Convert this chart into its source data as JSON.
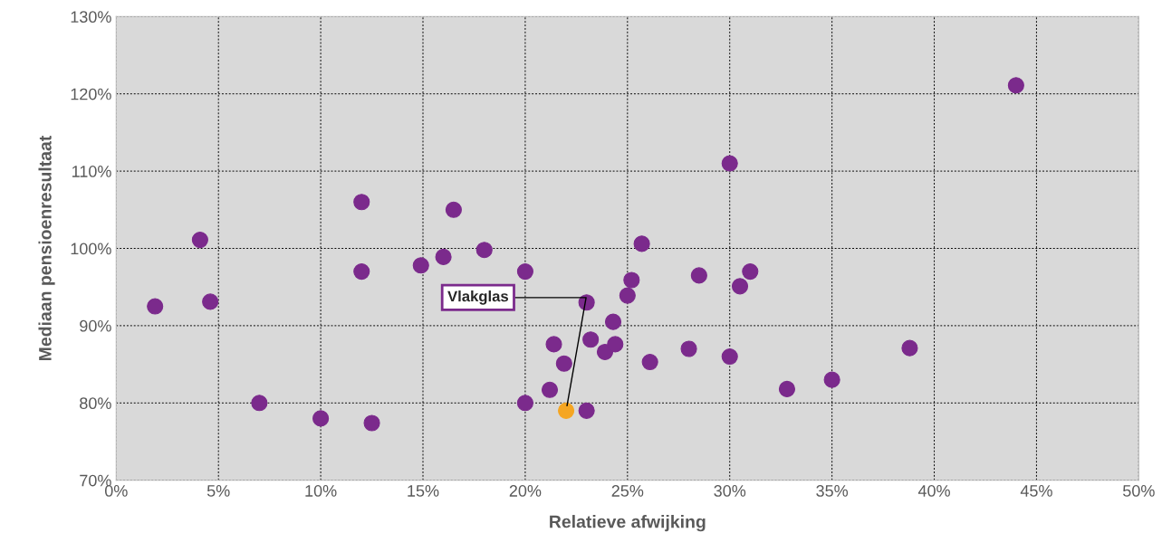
{
  "chart_data": {
    "type": "scatter",
    "xlabel": "Relatieve afwijking",
    "ylabel": "Mediaan pensioenresultaat",
    "xlim": [
      0,
      50
    ],
    "ylim": [
      70,
      130
    ],
    "xticks": [
      {
        "value": 0,
        "label": "0%"
      },
      {
        "value": 5,
        "label": "5%"
      },
      {
        "value": 10,
        "label": "10%"
      },
      {
        "value": 15,
        "label": "15%"
      },
      {
        "value": 20,
        "label": "20%"
      },
      {
        "value": 25,
        "label": "25%"
      },
      {
        "value": 30,
        "label": "30%"
      },
      {
        "value": 35,
        "label": "35%"
      },
      {
        "value": 40,
        "label": "40%"
      },
      {
        "value": 45,
        "label": "45%"
      },
      {
        "value": 50,
        "label": "50%"
      }
    ],
    "yticks": [
      {
        "value": 70,
        "label": "70%"
      },
      {
        "value": 80,
        "label": "80%"
      },
      {
        "value": 90,
        "label": "90%"
      },
      {
        "value": 100,
        "label": "100%"
      },
      {
        "value": 110,
        "label": "110%"
      },
      {
        "value": 120,
        "label": "120%"
      },
      {
        "value": 130,
        "label": "130%"
      }
    ],
    "grid": true,
    "marker": "circle",
    "series": [
      {
        "color": "#7b2a8c",
        "x": [
          1.9,
          4.1,
          4.6,
          7.0,
          10.0,
          12.0,
          12.0,
          12.5,
          14.9,
          16.0,
          16.5,
          18.0,
          20.0,
          20.0,
          21.2,
          21.4,
          21.9,
          23.0,
          23.0,
          23.2,
          23.9,
          24.3,
          24.4,
          25.0,
          25.2,
          25.7,
          26.1,
          28.0,
          28.5,
          30.0,
          30.0,
          30.5,
          31.0,
          32.8,
          35.0,
          38.8,
          44.0
        ],
        "values": [
          92.5,
          101.1,
          93.1,
          80.0,
          78.0,
          106.0,
          97.0,
          77.4,
          97.8,
          98.9,
          105.0,
          99.8,
          97.0,
          80.0,
          81.7,
          87.6,
          85.1,
          93.0,
          79.0,
          88.2,
          86.6,
          90.5,
          87.6,
          93.9,
          95.9,
          100.6,
          85.3,
          87.0,
          96.5,
          111.0,
          86.0,
          95.1,
          97.0,
          81.8,
          83.0,
          87.1,
          121.1
        ]
      },
      {
        "color": "#f5a623",
        "x": [
          22.0
        ],
        "values": [
          79.0
        ]
      }
    ],
    "annotations": [
      {
        "text": "Vlakglas",
        "x": 22.0,
        "y": 79.0
      }
    ]
  }
}
